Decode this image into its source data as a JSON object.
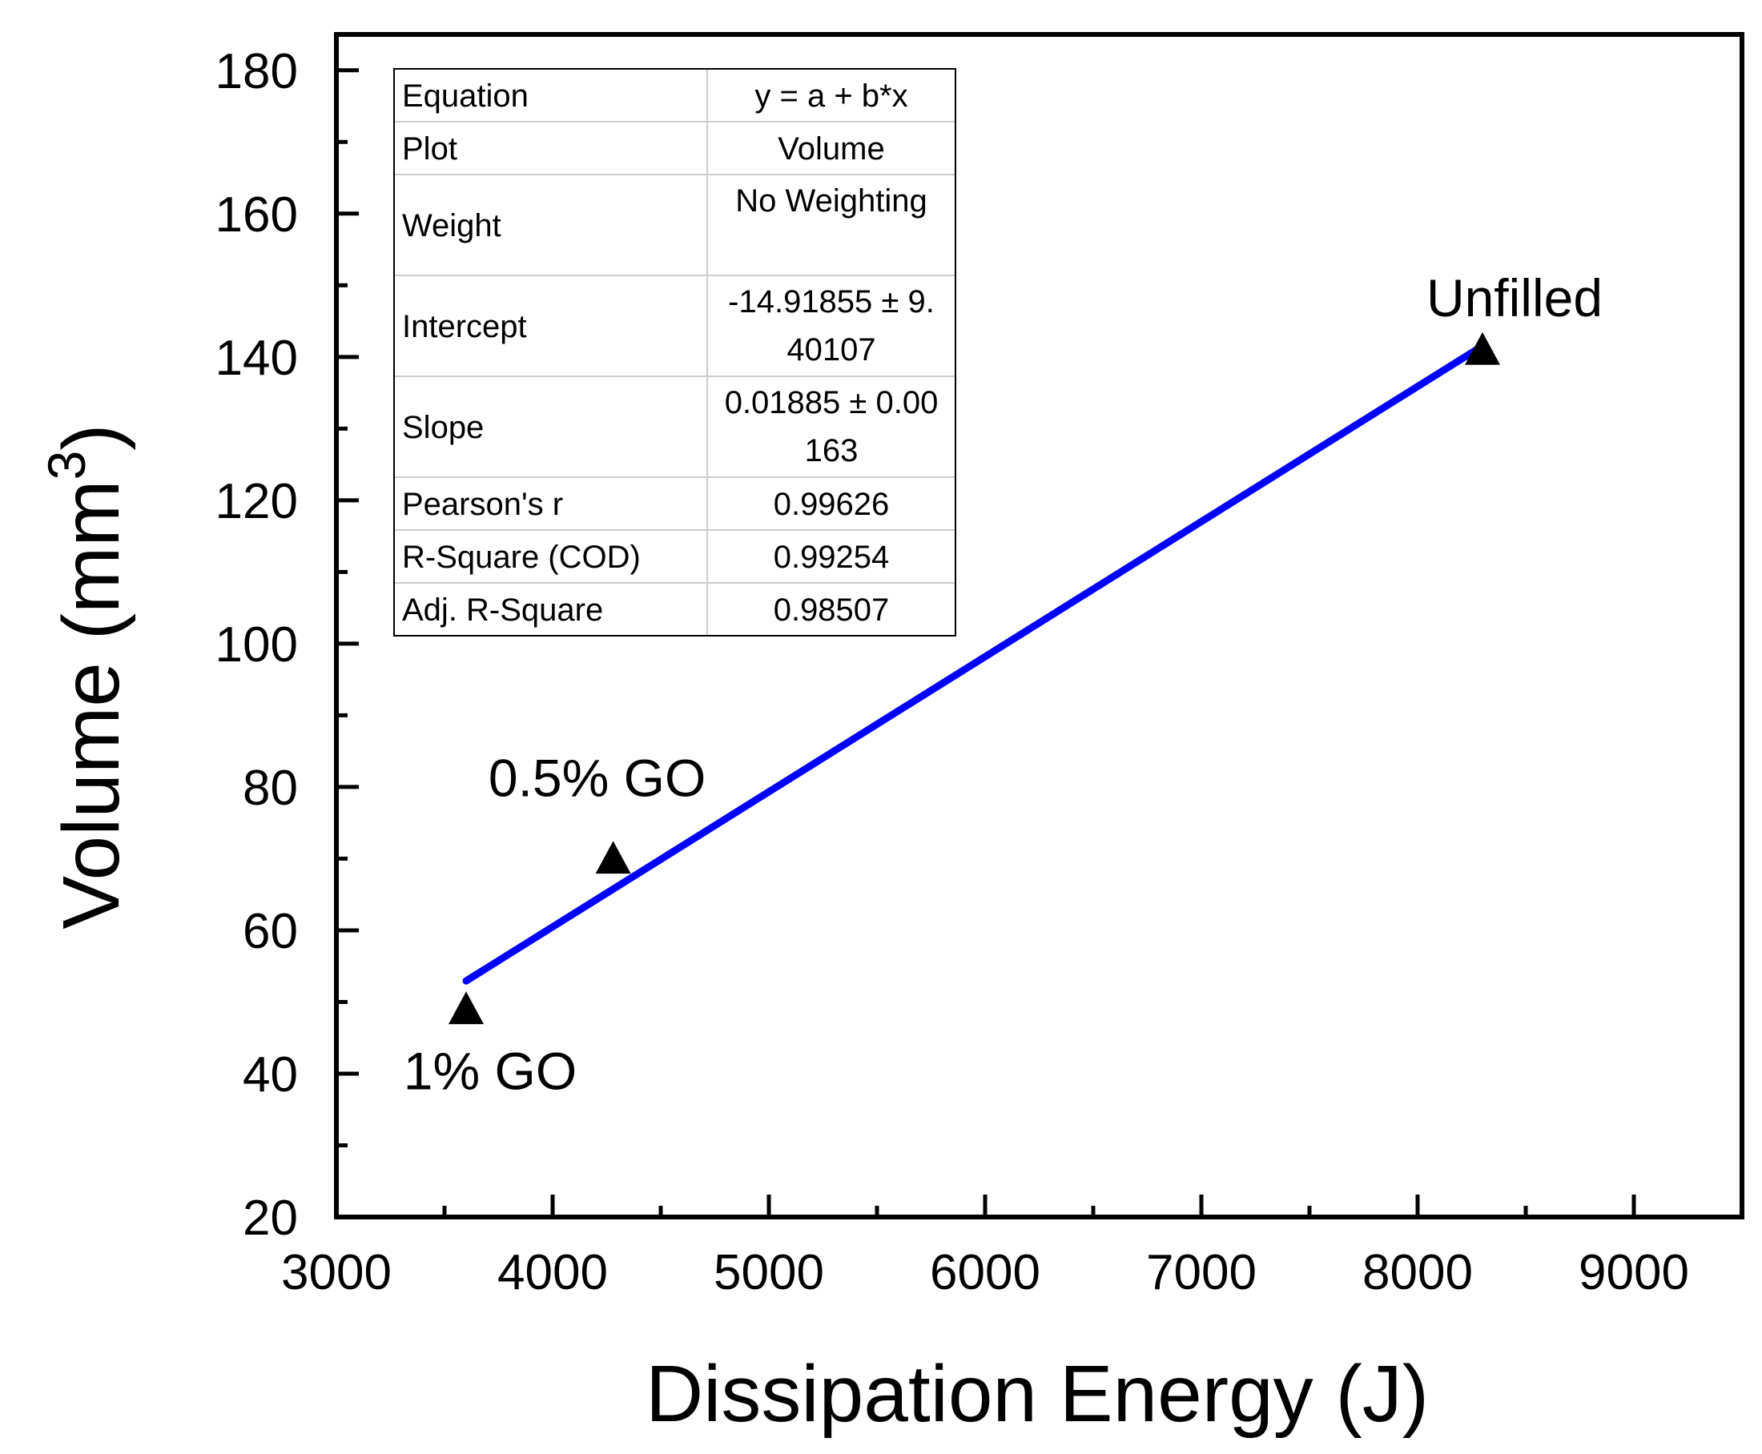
{
  "chart_data": {
    "type": "scatter",
    "xlabel": "Dissipation Energy (J)",
    "ylabel_main": "Volume (mm",
    "ylabel_sup": "3",
    "ylabel_close": ")",
    "xlim": [
      3000,
      9500
    ],
    "ylim": [
      20,
      185
    ],
    "xticks": [
      3000,
      4000,
      5000,
      6000,
      7000,
      8000,
      9000
    ],
    "xtick_labels": [
      "3000",
      "4000",
      "5000",
      "6000",
      "7000",
      "8000",
      "9000"
    ],
    "yticks": [
      20,
      40,
      60,
      80,
      100,
      120,
      140,
      160,
      180
    ],
    "ytick_labels": [
      "20",
      "40",
      "60",
      "80",
      "100",
      "120",
      "140",
      "160",
      "180"
    ],
    "points": [
      {
        "label": "1% GO",
        "x": 3600,
        "y": 49
      },
      {
        "label": "0.5% GO",
        "x": 4280,
        "y": 70
      },
      {
        "label": "Unfilled",
        "x": 8300,
        "y": 141
      }
    ],
    "fit_line": {
      "x_start": 3600,
      "x_end": 8300,
      "intercept": -14.91855,
      "slope": 0.01885,
      "color": "#0000ff"
    },
    "fit_table": [
      {
        "label": "Equation",
        "value": [
          "y = a + b*x"
        ]
      },
      {
        "label": "Plot",
        "value": [
          "Volume"
        ]
      },
      {
        "label": "Weight",
        "value": [
          "No Weighting"
        ]
      },
      {
        "label": "Intercept",
        "value": [
          "-14.91855 ± 9.",
          "40107"
        ]
      },
      {
        "label": "Slope",
        "value": [
          "0.01885 ± 0.00",
          "163"
        ]
      },
      {
        "label": "Pearson's r",
        "value": [
          "0.99626"
        ]
      },
      {
        "label": "R-Square (COD)",
        "value": [
          "0.99254"
        ]
      },
      {
        "label": "Adj. R-Square",
        "value": [
          "0.98507"
        ]
      }
    ]
  }
}
